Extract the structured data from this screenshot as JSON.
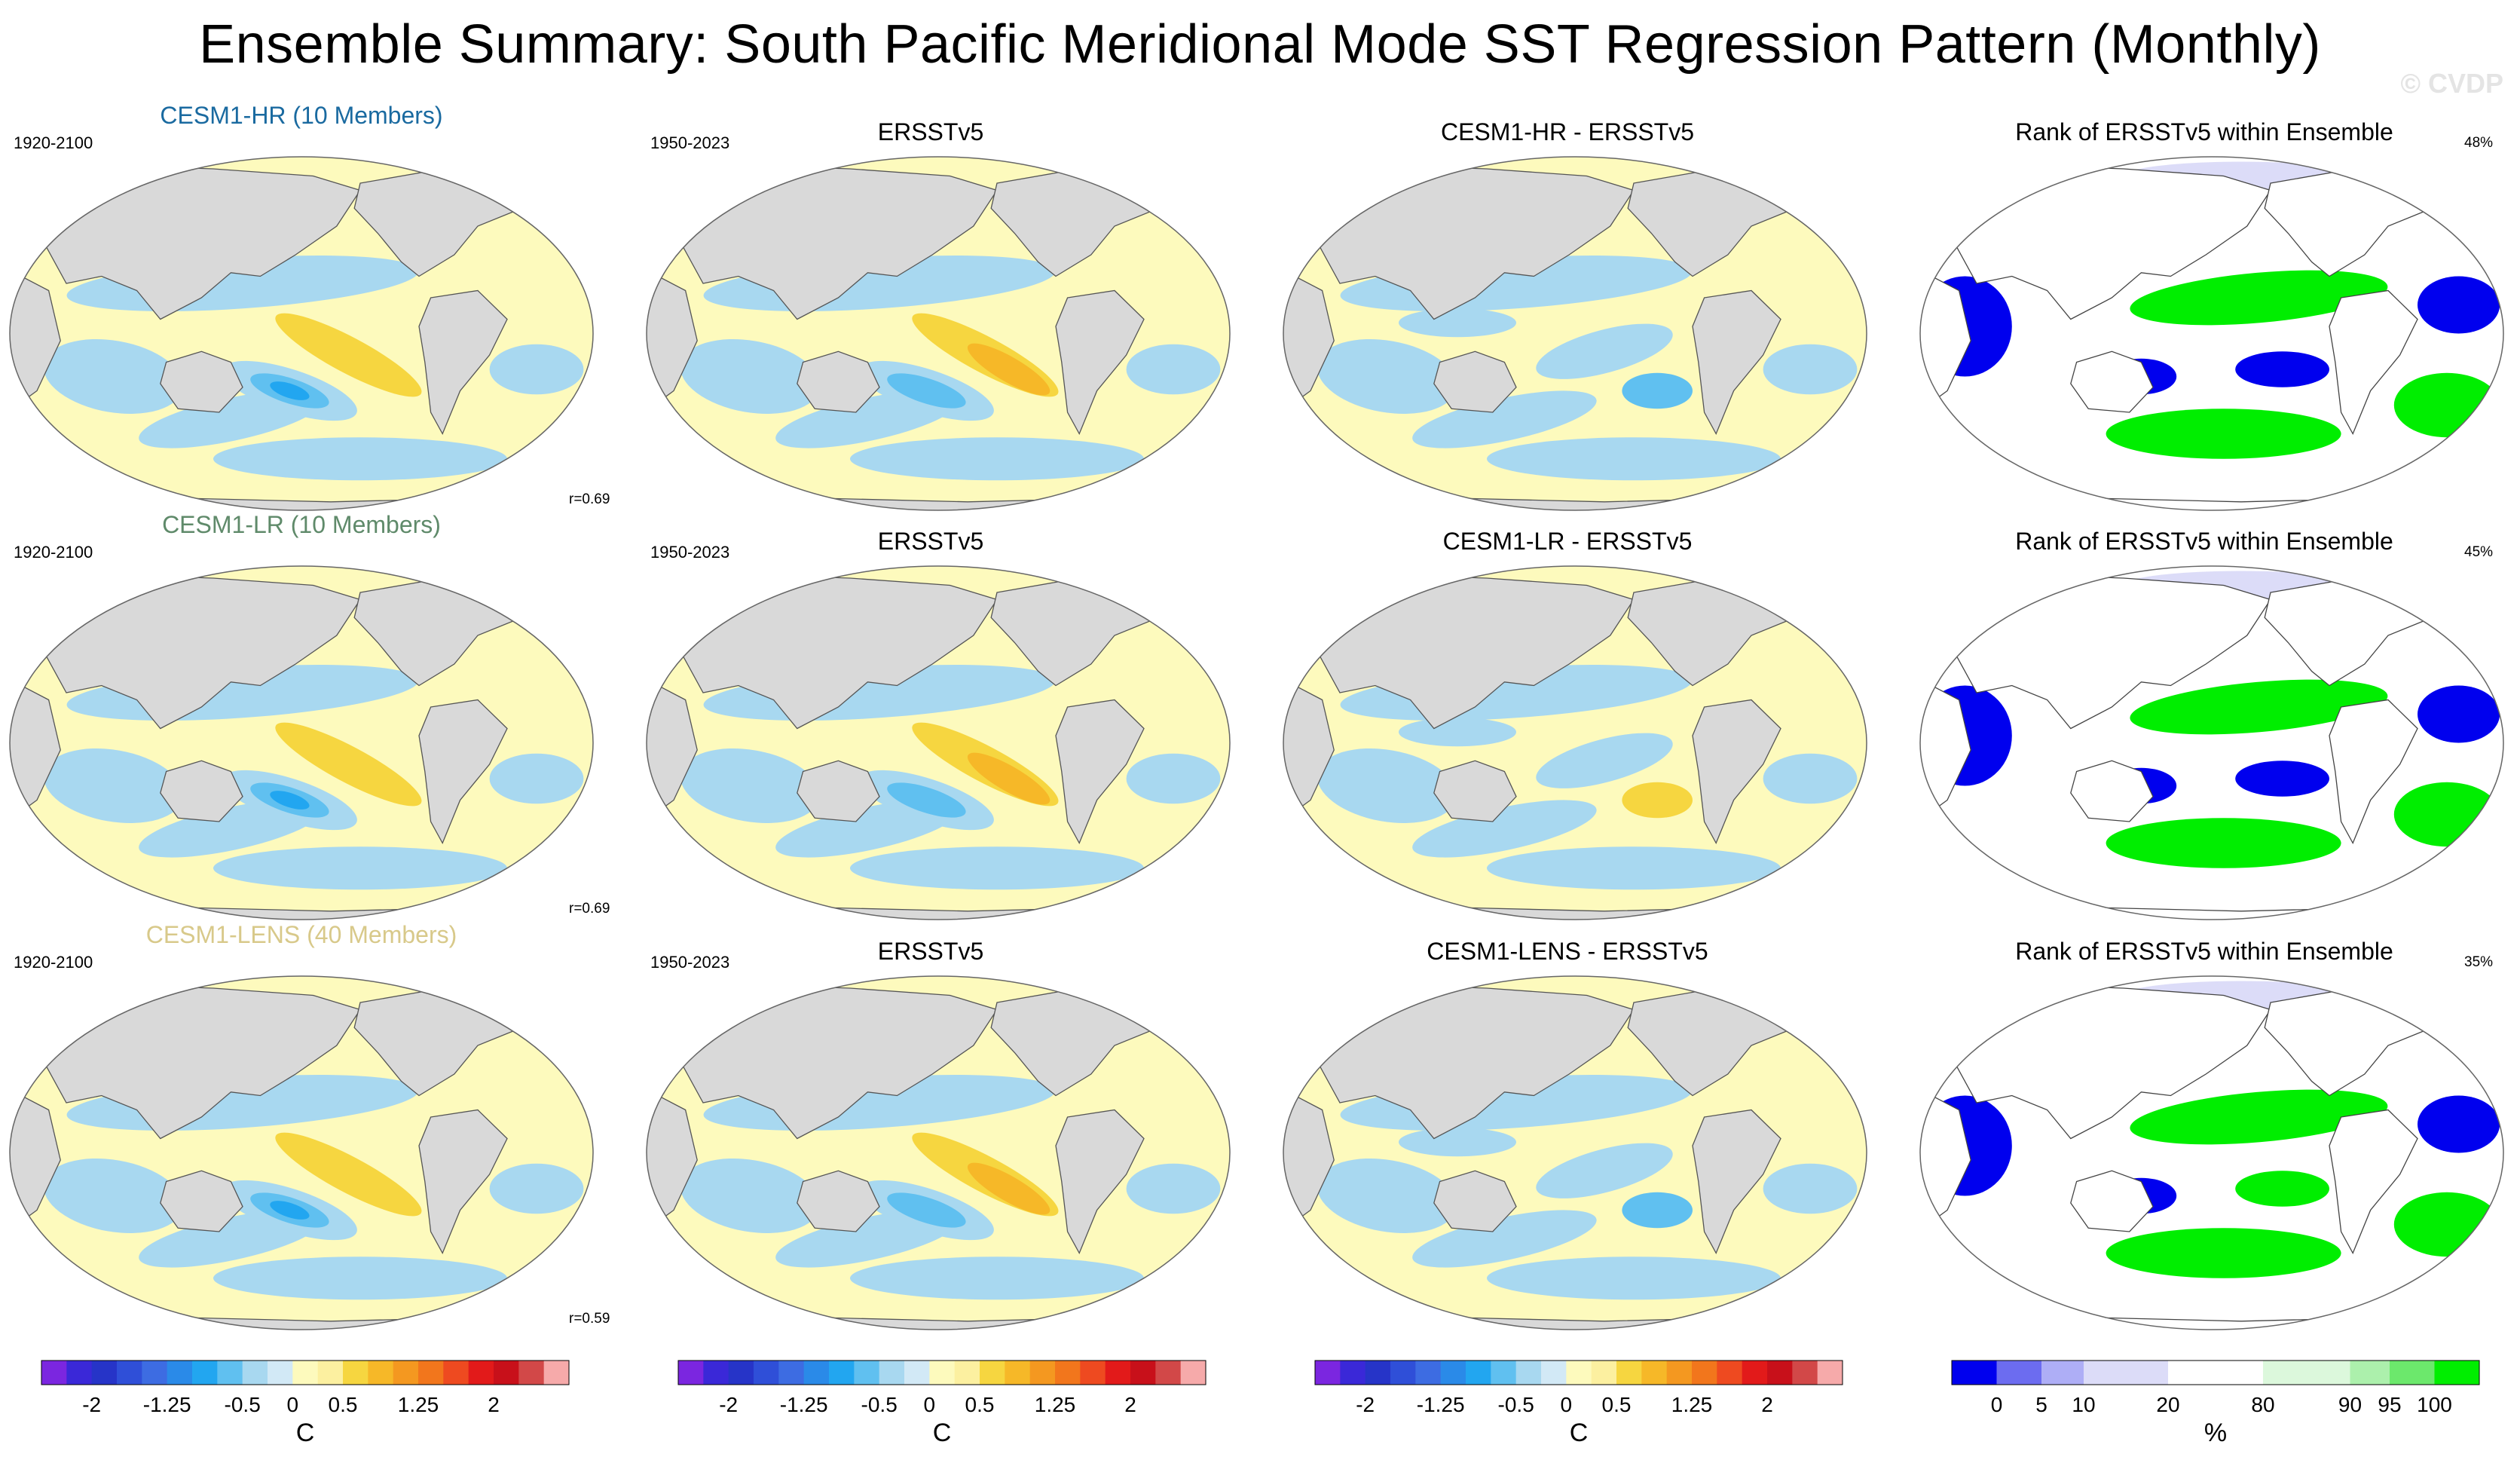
{
  "title": "Ensemble Summary: South Pacific Meridional Mode SST Regression Pattern (Monthly)",
  "credit": "© CVDP",
  "chart_data": {
    "type": "heatmap",
    "projection": "Robinson (global, Pacific-centred)",
    "variable": "SST regression on South Pacific Meridional Mode",
    "units": "C",
    "rows": [
      {
        "model": "CESM1-HR (10 Members)",
        "model_color": "#1a6aa0",
        "model_period": "1920-2100",
        "obs": "ERSSTv5",
        "obs_period": "1950-2023",
        "diff": "CESM1-HR - ERSSTv5",
        "rank_title": "Rank of ERSSTv5 within Ensemble",
        "pattern_corr": "r=0.69",
        "rank_pct": "48%",
        "model_peak": -0.75,
        "diff_peak": -0.5
      },
      {
        "model": "CESM1-LR (10 Members)",
        "model_color": "#5f8a6a",
        "model_period": "1920-2100",
        "obs": "ERSSTv5",
        "obs_period": "1950-2023",
        "diff": "CESM1-LR - ERSSTv5",
        "rank_title": "Rank of ERSSTv5 within Ensemble",
        "pattern_corr": "r=0.69",
        "rank_pct": "45%",
        "model_peak": -0.75,
        "diff_peak": 0.5
      },
      {
        "model": "CESM1-LENS (40 Members)",
        "model_color": "#d8c98a",
        "model_period": "1920-2100",
        "obs": "ERSSTv5",
        "obs_period": "1950-2023",
        "diff": "CESM1-LENS - ERSSTv5",
        "rank_title": "Rank of ERSSTv5 within Ensemble",
        "pattern_corr": "r=0.59",
        "rank_pct": "35%",
        "model_peak": -0.75,
        "diff_peak": -0.5
      }
    ],
    "obs_peak": 0.75,
    "sst_colorbar": {
      "levels": [
        -2,
        -1.75,
        -1.5,
        -1.25,
        -1,
        -0.75,
        -0.5,
        -0.25,
        0,
        0.25,
        0.5,
        0.75,
        1,
        1.25,
        1.5,
        1.75,
        2
      ],
      "tick_labels": [
        "-2",
        "-1.25",
        "-0.5",
        "0",
        "0.5",
        "1.25",
        "2"
      ],
      "unit": "C",
      "colors": [
        "#7b26e0",
        "#3a28d8",
        "#2634c8",
        "#2f4fd8",
        "#3d6ce2",
        "#2a8ae8",
        "#22a6f0",
        "#60c0f0",
        "#a8d8f0",
        "#d2e9f6",
        "#fdfabd",
        "#fcf0a0",
        "#f6d640",
        "#f6b828",
        "#f49820",
        "#f2761c",
        "#ee4a20",
        "#e21a1a",
        "#c8101a",
        "#d24848",
        "#f6aaaa"
      ]
    },
    "rank_colorbar": {
      "levels": [
        0,
        5,
        10,
        20,
        80,
        90,
        95,
        100
      ],
      "tick_labels": [
        "0",
        "5",
        "10",
        "20",
        "80",
        "90",
        "95",
        "100"
      ],
      "unit": "%",
      "colors": [
        "#0000ee",
        "#6c6cf0",
        "#aeaef6",
        "#dcdcf8",
        "#ffffff",
        "#dcf8dc",
        "#acf0ac",
        "#6ce86c",
        "#00ee00"
      ]
    },
    "palette": {
      "land": "#d9d9d9",
      "sst_neg1": "#a8d8f0",
      "sst_neg2": "#60c0f0",
      "sst_neg3": "#22a6f0",
      "sst_pos1": "#fdfabd",
      "sst_pos2": "#f6d640",
      "sst_pos3": "#f6b828",
      "rank_low": "#0000ee",
      "rank_lowmid": "#dcdcf8",
      "rank_high": "#00ee00",
      "rank_highmid": "#dcf8dc"
    }
  }
}
